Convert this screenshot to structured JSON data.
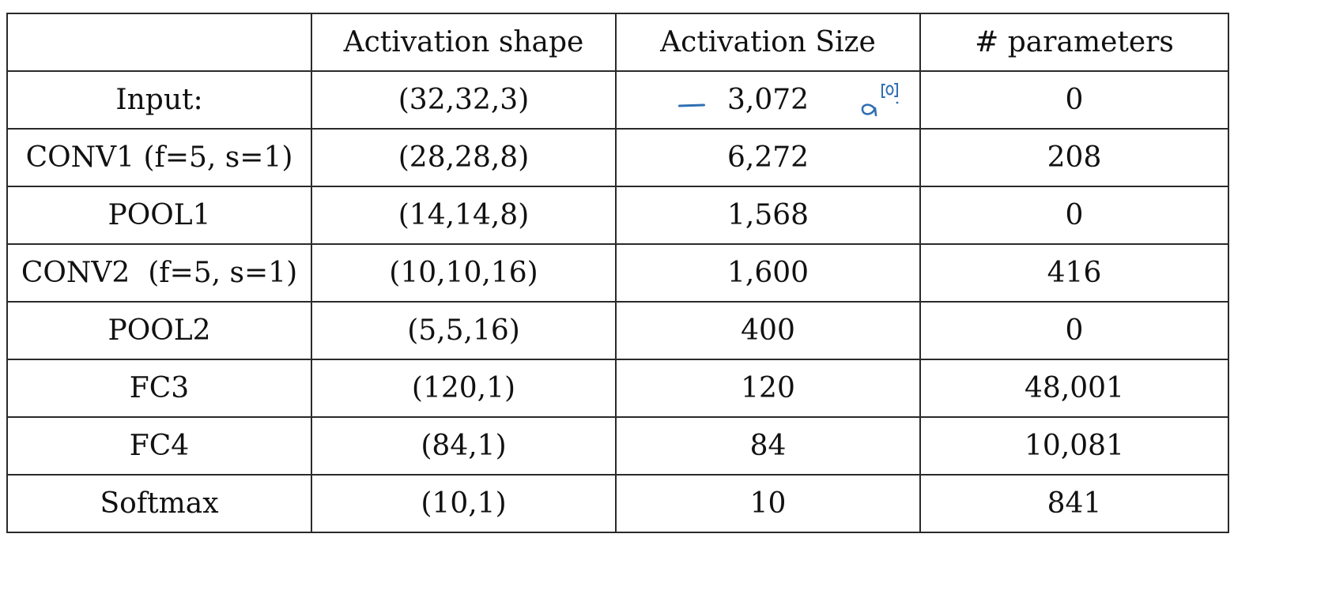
{
  "headers": [
    "",
    "Activation shape",
    "Activation Size",
    "# parameters"
  ],
  "rows": [
    {
      "layer": "Input:",
      "shape": "(32,32,3)",
      "size": "3,072",
      "params": "0"
    },
    {
      "layer": "CONV1 (f=5, s=1)",
      "shape": "(28,28,8)",
      "size": "6,272",
      "params": "208"
    },
    {
      "layer": "POOL1",
      "shape": "(14,14,8)",
      "size": "1,568",
      "params": "0"
    },
    {
      "layer": "CONV2  (f=5, s=1)",
      "shape": "(10,10,16)",
      "size": "1,600",
      "params": "416"
    },
    {
      "layer": "POOL2",
      "shape": "(5,5,16)",
      "size": "400",
      "params": "0"
    },
    {
      "layer": "FC3",
      "shape": "(120,1)",
      "size": "120",
      "params": "48,001"
    },
    {
      "layer": "FC4",
      "shape": "(84,1)",
      "size": "84",
      "params": "10,081"
    },
    {
      "layer": "Softmax",
      "shape": "(10,1)",
      "size": "10",
      "params": "841"
    }
  ],
  "annotation": {
    "text": "a[0]",
    "ink_color": "#2f6fb3"
  }
}
